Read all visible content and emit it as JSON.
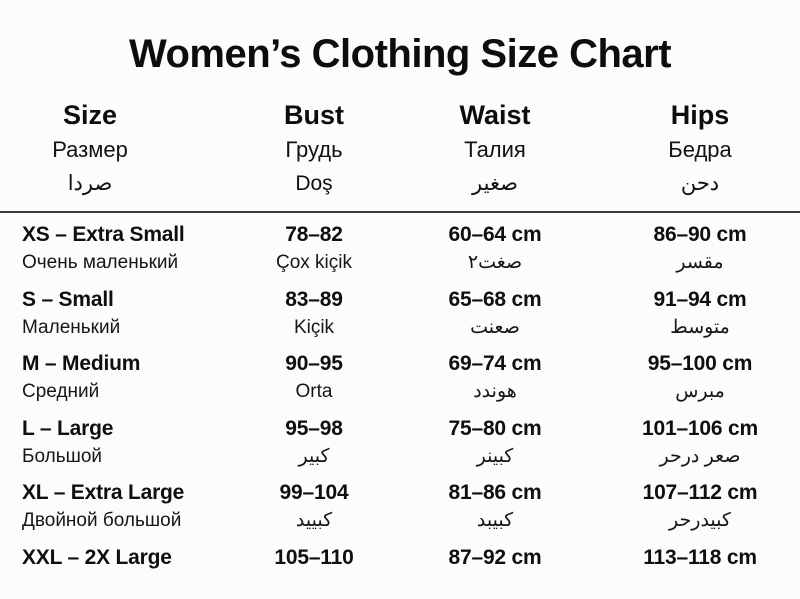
{
  "chart_data": {
    "type": "table",
    "title": "Women’s Clothing Size Chart",
    "columns": [
      {
        "en": "Size",
        "ru": "Размер",
        "alt": "صردا"
      },
      {
        "en": "Bust",
        "ru": "Грудь",
        "alt": "Doş"
      },
      {
        "en": "Waist",
        "ru": "Талия",
        "alt": "صغير"
      },
      {
        "en": "Hips",
        "ru": "Бедра",
        "alt": "دحن"
      }
    ],
    "rows": [
      {
        "size": "XS – Extra Small",
        "size_sub": "Очень маленький",
        "bust": "78–82",
        "bust_sub": "Çox kiçik",
        "waist": "60–64 cm",
        "waist_sub": "صغت٢",
        "hips": "86–90 cm",
        "hips_sub": "مقسر"
      },
      {
        "size": "S – Small",
        "size_sub": "Маленький",
        "bust": "83–89",
        "bust_sub": "Kiçik",
        "waist": "65–68 cm",
        "waist_sub": "صعنت",
        "hips": "91–94 cm",
        "hips_sub": "متوسط"
      },
      {
        "size": "M – Medium",
        "size_sub": "Средний",
        "bust": "90–95",
        "bust_sub": "Orta",
        "waist": "69–74 cm",
        "waist_sub": "هوندد",
        "hips": "95–100 cm",
        "hips_sub": "مبرس"
      },
      {
        "size": "L – Large",
        "size_sub": "Большой",
        "bust": "95–98",
        "bust_sub": "كبير",
        "waist": "75–80 cm",
        "waist_sub": "كبينر",
        "hips": "101–106 cm",
        "hips_sub": "صعر درحر"
      },
      {
        "size": "XL – Extra Large",
        "size_sub": "Двойной большой",
        "bust": "99–104",
        "bust_sub": "كبييد",
        "waist": "81–86 cm",
        "waist_sub": "كبيبد",
        "hips": "107–112 cm",
        "hips_sub": "كبيدرحر"
      },
      {
        "size": "XXL – 2X Large",
        "bust": "105–110",
        "waist": "87–92 cm",
        "hips": "113–118 cm"
      }
    ],
    "colors": {
      "text": "#111111",
      "background": "#fcfcfc",
      "divider": "#3c3c3c"
    }
  }
}
